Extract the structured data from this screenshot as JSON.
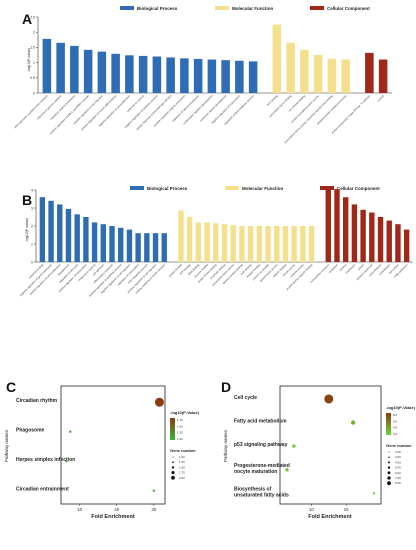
{
  "panels": {
    "A": {
      "label": "A",
      "ylabel": "-log10(P-value)",
      "ylim": [
        0,
        2.5
      ],
      "yticks": [
        "0",
        "0.5",
        "1",
        "1.5",
        "2",
        "2.5"
      ],
      "legend": [
        {
          "name": "Biological Process",
          "color": "#2e6db4"
        },
        {
          "name": "Molecular Function",
          "color": "#f4e08c"
        },
        {
          "name": "Cellular Component",
          "color": "#a02818"
        }
      ],
      "chart_data": {
        "type": "bar",
        "series": [
          {
            "name": "Biological Process",
            "color": "#2e6db4",
            "categories": [
              "ATP hydrolysis coupled proton transport",
              "response to gamma radiation",
              "regulation of gene expression",
              "positive regulation of ERK1 and ERK2 cascade",
              "positive regulation of cell migration",
              "positive regulation of neuron differentiation",
              "negative regulation of cell proliferation",
              "response to hypoxia",
              "negative regulation of apoptotic process",
              "cellular response to DNA damage stimulus",
              "positive regulation of gene expression",
              "regulation of signal transduction",
              "multicellular organism development",
              "ventricular septum development",
              "negative regulation of transcription",
              "regulation of lipid metabolic process"
            ],
            "values": [
              1.78,
              1.65,
              1.55,
              1.42,
              1.36,
              1.29,
              1.24,
              1.22,
              1.2,
              1.17,
              1.14,
              1.12,
              1.1,
              1.08,
              1.06,
              1.04
            ]
          },
          {
            "name": "Molecular Function",
            "color": "#f4e08c",
            "categories": [
              "ATP binding",
              "transcription factor binding",
              "ion channel binding",
              "protein homodimerization activity",
              "transcription factor activity, sequence-specific DNA binding",
              "ubiquitin-protein transferase activity"
            ],
            "values": [
              2.25,
              1.65,
              1.42,
              1.25,
              1.12,
              1.1
            ]
          },
          {
            "name": "Cellular Component",
            "color": "#a02818",
            "categories": [
              "proton-transporting V-type ATPase, V1 domain",
              "cytosol"
            ],
            "values": [
              1.32,
              1.1
            ]
          }
        ]
      }
    },
    "B": {
      "label": "B",
      "ylabel": "-log10(P-value)",
      "ylim": [
        0,
        4
      ],
      "yticks": [
        "0",
        "1",
        "2",
        "3",
        "4"
      ],
      "legend": [
        {
          "name": "Biological Process",
          "color": "#2e6db4"
        },
        {
          "name": "Molecular Function",
          "color": "#f4e08c"
        },
        {
          "name": "Cellular Component",
          "color": "#a02818"
        }
      ],
      "chart_data": {
        "type": "bar",
        "series": [
          {
            "name": "Biological Process",
            "color": "#2e6db4",
            "categories": [
              "response to drug",
              "negative regulation of gene expression",
              "positive regulation of cell proliferation",
              "angiogenesis",
              "regulation of cell cycle",
              "positive regulation of transcription",
              "response to hypoxia",
              "cell adhesion",
              "inflammatory response",
              "positive regulation of apoptotic process",
              "negative regulation of cell migration",
              "regulation of transcription",
              "ATP metabolic process",
              "positive regulation of cell migration",
              "cellular response to insulin stimulus"
            ],
            "values": [
              3.6,
              3.4,
              3.2,
              2.95,
              2.65,
              2.5,
              2.2,
              2.1,
              2.0,
              1.9,
              1.8,
              1.6,
              1.6,
              1.6,
              1.6
            ]
          },
          {
            "name": "Molecular Function",
            "color": "#f4e08c",
            "categories": [
              "protein binding",
              "ATP binding",
              "DNA binding",
              "enzyme binding",
              "protein kinase binding",
              "chromatin binding",
              "transcription factor activity",
              "identical protein binding",
              "actin binding",
              "receptor binding",
              "calcium ion binding",
              "growth factor activity",
              "heparin binding",
              "kinase activity",
              "cytokine activity",
              "protein domain specific binding"
            ],
            "values": [
              2.85,
              2.5,
              2.2,
              2.2,
              2.15,
              2.1,
              2.05,
              2.0,
              2.0,
              2.0,
              2.0,
              2.0,
              2.0,
              2.0,
              2.0,
              2.0
            ]
          },
          {
            "name": "Cellular Component",
            "color": "#a02818",
            "categories": [
              "extracellular exosome",
              "cytoplasm",
              "nucleus",
              "membrane",
              "cytosol",
              "plasma membrane",
              "mitochondrion",
              "nucleoplasm",
              "cell surface",
              "Golgi apparatus"
            ],
            "values": [
              4.1,
              4.05,
              3.6,
              3.2,
              2.9,
              2.75,
              2.5,
              2.3,
              2.1,
              1.8
            ]
          }
        ]
      }
    },
    "C": {
      "label": "C",
      "ylabel": "Pathway names",
      "xlabel": "Fold Enrichment",
      "xticks": [
        "10",
        "20",
        "30"
      ],
      "xlim": [
        5,
        33
      ],
      "legend_title": "-log10(P-Value)",
      "color_ticks": [
        "1.00",
        "1.25",
        "1.50",
        "1.75"
      ],
      "size_title": "Gene number",
      "size_ticks": [
        "1.00",
        "1.25",
        "1.50",
        "1.75",
        "2.00"
      ],
      "chart_data": {
        "type": "scatter",
        "categories": [
          "Circadian rhythm",
          "Phagosome",
          "Herpes simplex infection",
          "Circadian entrainment"
        ],
        "points": [
          {
            "pathway": "Circadian rhythm",
            "x": 31.5,
            "neg_log10_p": 1.85,
            "gene_number": 2
          },
          {
            "pathway": "Phagosome",
            "x": 7.5,
            "neg_log10_p": 1.15,
            "gene_number": 1
          },
          {
            "pathway": "Herpes simplex infection",
            "x": 6.5,
            "neg_log10_p": 1.2,
            "gene_number": 1
          },
          {
            "pathway": "Circadian entrainment",
            "x": 30,
            "neg_log10_p": 1.0,
            "gene_number": 1
          }
        ]
      }
    },
    "D": {
      "label": "D",
      "ylabel": "Pathway names",
      "xlabel": "Fold Enrichment",
      "xticks": [
        "10",
        "15"
      ],
      "xlim": [
        5.5,
        20
      ],
      "legend_title": "-log10(P-Value)",
      "color_ticks": [
        "3.0",
        "4.0",
        "5.0",
        "6.0"
      ],
      "size_title": "Gene number",
      "size_ticks": [
        "2.00",
        "3.00",
        "4.00",
        "5.00",
        "6.00",
        "7.00",
        "8.00"
      ],
      "chart_data": {
        "type": "scatter",
        "categories": [
          "Cell cycle",
          "Fatty acid metabolism",
          "p53 signaling pathway",
          "Progesterone-mediated oocyte maturation",
          "Biosynthesis of unsaturated fatty acids"
        ],
        "points": [
          {
            "pathway": "Cell cycle",
            "x": 12.5,
            "neg_log10_p": 6.3,
            "gene_number": 8
          },
          {
            "pathway": "Fatty acid metabolism",
            "x": 16.0,
            "neg_log10_p": 3.5,
            "gene_number": 3
          },
          {
            "pathway": "p53 signaling pathway",
            "x": 7.5,
            "neg_log10_p": 3.0,
            "gene_number": 2
          },
          {
            "pathway": "Progesterone-mediated oocyte maturation",
            "x": 6.5,
            "neg_log10_p": 3.0,
            "gene_number": 2
          },
          {
            "pathway": "Biosynthesis of unsaturated fatty acids",
            "x": 19.0,
            "neg_log10_p": 2.5,
            "gene_number": 1
          }
        ]
      }
    }
  }
}
